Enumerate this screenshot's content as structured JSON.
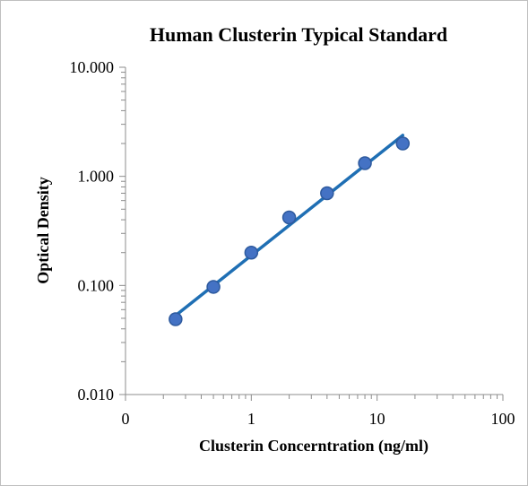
{
  "chart_data": {
    "type": "scatter",
    "title": "Human Clusterin Typical Standard",
    "xlabel": "Clusterin Concerntration (ng/ml)",
    "ylabel": "Optical Density",
    "x_scale": "log",
    "y_scale": "log",
    "xlim": [
      0.1,
      100
    ],
    "ylim": [
      0.01,
      10
    ],
    "x_tick_labels": [
      "0",
      "1",
      "10",
      "100"
    ],
    "y_tick_labels": [
      "10.000",
      "1.000",
      "0.100",
      "0.010"
    ],
    "grid": false,
    "legend": "none",
    "series": [
      {
        "x": [
          0.25,
          0.5,
          1,
          2,
          4,
          8,
          16
        ],
        "y": [
          0.049,
          0.097,
          0.2,
          0.42,
          0.7,
          1.32,
          2.0
        ],
        "marker_color": "#4472c4",
        "marker_edge_color": "#2e5a9e"
      }
    ],
    "trendline": {
      "type": "power",
      "x_range": [
        0.25,
        16
      ],
      "y_range": [
        0.053,
        2.38
      ],
      "color": "#1f6fb4"
    }
  }
}
